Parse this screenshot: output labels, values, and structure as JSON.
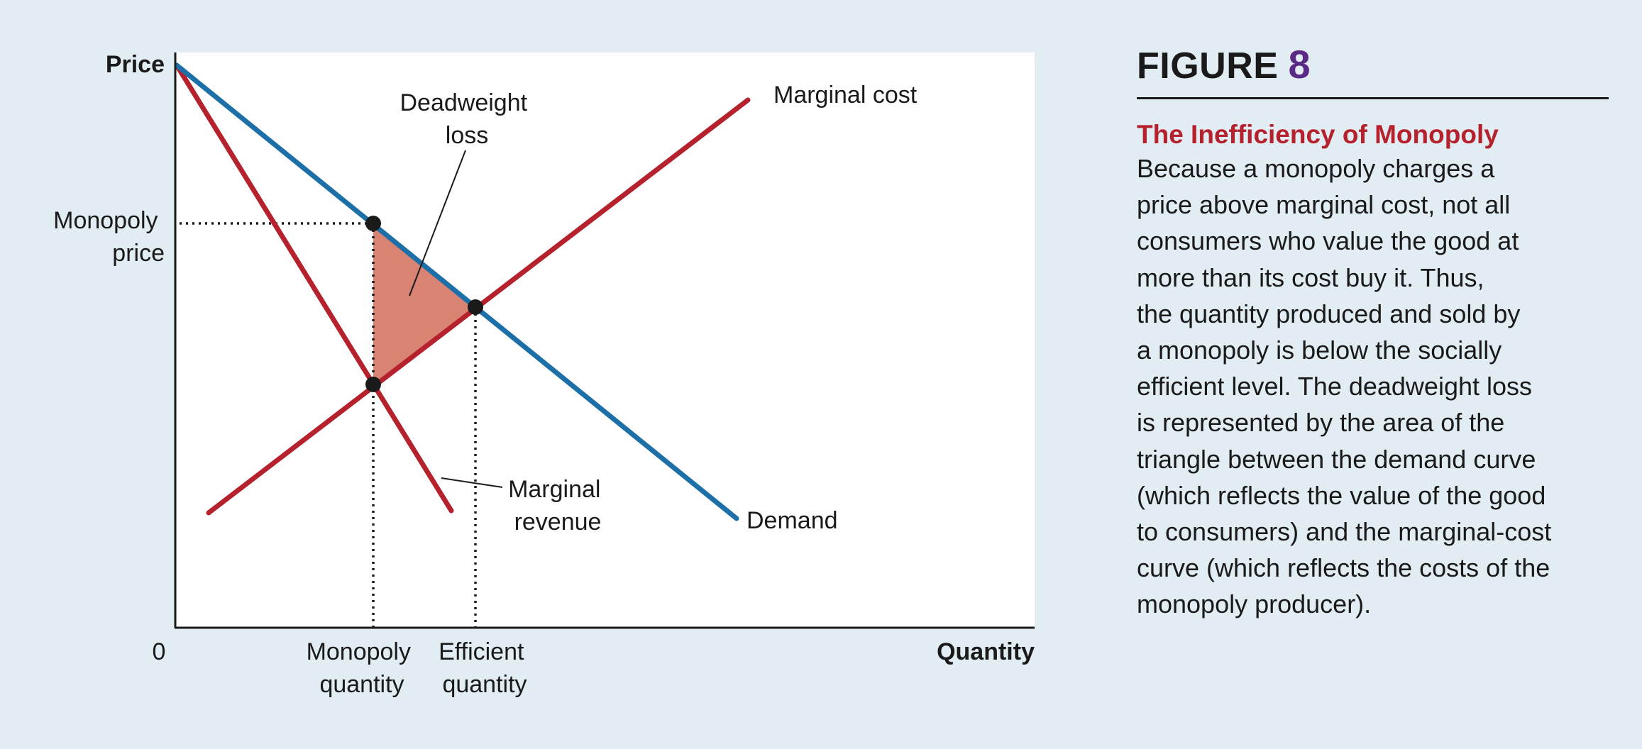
{
  "figure": {
    "label": "FIGURE",
    "number": "8",
    "title": "The Inefficiency of Monopoly",
    "caption_lines": [
      "Because a monopoly charges a",
      "price above marginal cost, not all",
      "consumers who value the good at",
      "more than its cost buy it. Thus,",
      "the quantity produced and sold by",
      "a monopoly is below the socially",
      "efficient level. The deadweight loss",
      "is represented by the area of the",
      "triangle between the demand curve",
      "(which reflects the value of the good",
      "to consumers) and the marginal-cost",
      "curve (which reflects the costs of the",
      "monopoly producer)."
    ]
  },
  "diagram": {
    "axes": {
      "y_label": "Price",
      "x_label": "Quantity",
      "origin_label": "0"
    },
    "ticks": {
      "monopoly_price": [
        "Monopoly",
        "price"
      ],
      "monopoly_quantity": [
        "Monopoly",
        "quantity"
      ],
      "efficient_quantity": [
        "Efficient",
        "quantity"
      ]
    },
    "curves": {
      "marginal_cost": "Marginal cost",
      "demand": "Demand",
      "marginal_revenue": [
        "Marginal",
        "revenue"
      ]
    },
    "annotations": {
      "deadweight_loss": [
        "Deadweight",
        "loss"
      ]
    },
    "colors": {
      "demand": "#1d6fa8",
      "marginal_cost": "#b5222d",
      "marginal_revenue": "#b5222d",
      "deadweight_fill": "#d98373",
      "plot_background": "#ffffff",
      "page_background": "#e1edf3",
      "figure_number": "#5b2a86"
    }
  }
}
